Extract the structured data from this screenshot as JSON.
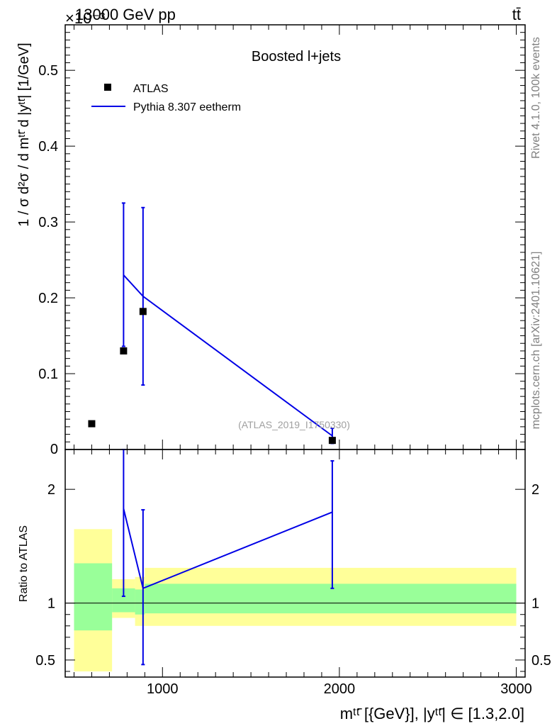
{
  "header": {
    "left": "13000 GeV pp",
    "right": "tt̄"
  },
  "side_text": {
    "rivet": "Rivet 4.1.0,  100k events",
    "mcplots": "mcplots.cern.ch [arXiv:2401.10621]"
  },
  "watermark": "(ATLAS_2019_I1750330)",
  "chart_data": [
    {
      "type": "scatter",
      "title": "Boosted l+jets",
      "ylabel": "1 / σ d²σ / d mᵗᵗ̄ d |yᵗᵗ̄| [1/GeV]",
      "exponent_label": "×10⁻³",
      "xlim": [
        450,
        3050
      ],
      "ylim": [
        0,
        0.56
      ],
      "yticks": [
        0.1,
        0.2,
        0.3,
        0.4,
        0.5
      ],
      "ytick_labels": [
        "0.1",
        "0.2",
        "0.3",
        "0.4",
        "0.5"
      ],
      "legend_position": "top-left",
      "series": [
        {
          "name": "ATLAS",
          "color": "#000000",
          "points": [
            {
              "x": 600,
              "y": 0.034
            },
            {
              "x": 780,
              "y": 0.13
            },
            {
              "x": 890,
              "y": 0.182
            },
            {
              "x": 1960,
              "y": 0.012
            }
          ]
        },
        {
          "name": "Pythia 8.307 eetherm",
          "color": "#0000e6",
          "points": [
            {
              "x": 780,
              "y": 0.23,
              "ylo": 0.136,
              "yhi": 0.325
            },
            {
              "x": 890,
              "y": 0.202,
              "ylo": 0.085,
              "yhi": 0.319
            },
            {
              "x": 1960,
              "y": 0.018,
              "ylo": 0.008,
              "yhi": 0.028
            }
          ]
        }
      ]
    },
    {
      "type": "line",
      "ylabel": "Ratio to ATLAS",
      "xlabel": "mᵗᵗ̄ [{GeV}], |yᵗᵗ̄| ∈ [1.3,2.0]",
      "xlim": [
        450,
        3050
      ],
      "ylim": [
        0.35,
        2.35
      ],
      "xticks": [
        1000,
        2000,
        3000
      ],
      "xtick_labels": [
        "1000",
        "2000",
        "3000"
      ],
      "yticks": [
        0.5,
        1,
        2
      ],
      "ytick_labels": [
        "0.5",
        "1",
        "2"
      ],
      "uncertainty_bands": [
        {
          "x0": 500,
          "x1": 715,
          "yellow": [
            0.4,
            1.65
          ],
          "green": [
            0.76,
            1.35
          ]
        },
        {
          "x0": 715,
          "x1": 845,
          "yellow": [
            0.87,
            1.21
          ],
          "green": [
            0.92,
            1.13
          ]
        },
        {
          "x0": 845,
          "x1": 900,
          "yellow": [
            0.8,
            1.23
          ],
          "green": [
            0.9,
            1.12
          ]
        },
        {
          "x0": 900,
          "x1": 3000,
          "yellow": [
            0.8,
            1.31
          ],
          "green": [
            0.91,
            1.17
          ]
        }
      ],
      "series": [
        {
          "name": "Pythia 8.307 eetherm",
          "color": "#0000e6",
          "points": [
            {
              "x": 780,
              "y": 1.83,
              "ylo": 1.06,
              "yhi": 2.35
            },
            {
              "x": 890,
              "y": 1.13,
              "ylo": 0.46,
              "yhi": 1.82
            },
            {
              "x": 1960,
              "y": 1.8,
              "ylo": 1.13,
              "yhi": 2.25
            }
          ]
        }
      ]
    }
  ]
}
